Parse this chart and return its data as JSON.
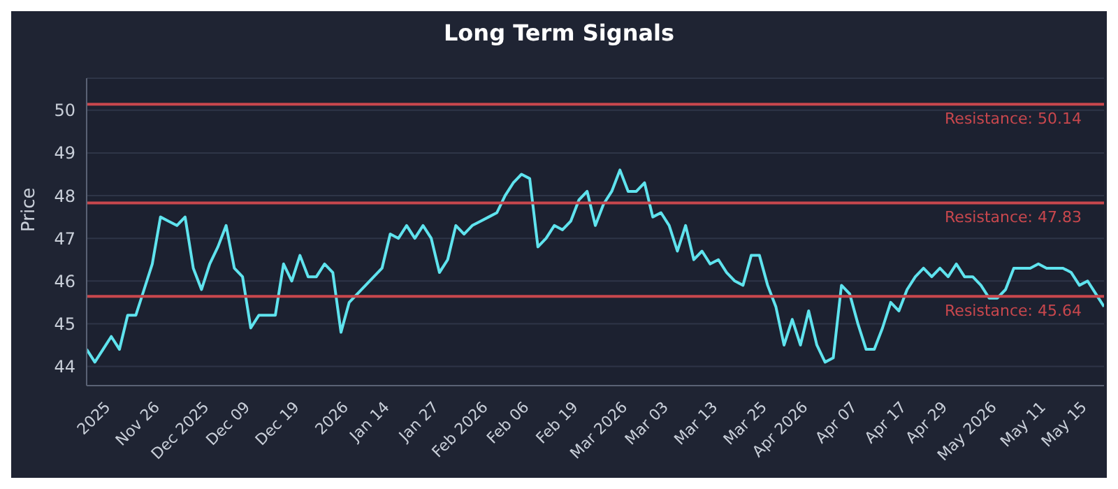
{
  "chart_data": {
    "type": "line",
    "title": "Long Term Signals",
    "ylabel": "Price",
    "categories": [
      null,
      null,
      null,
      "2025",
      null,
      null,
      null,
      null,
      null,
      "Nov 26",
      null,
      null,
      null,
      null,
      null,
      "Dec 2025",
      null,
      null,
      null,
      null,
      "Dec 09",
      null,
      null,
      null,
      null,
      null,
      "Dec 19",
      null,
      null,
      null,
      null,
      null,
      "2026",
      null,
      null,
      null,
      null,
      "Jan 14",
      null,
      null,
      null,
      null,
      null,
      "Jan 27",
      null,
      null,
      null,
      null,
      null,
      "Feb 2026",
      null,
      null,
      null,
      null,
      "Feb 06",
      null,
      null,
      null,
      null,
      null,
      "Feb 19",
      null,
      null,
      null,
      null,
      null,
      "Mar 2026",
      null,
      null,
      null,
      null,
      "Mar 03",
      null,
      null,
      null,
      null,
      null,
      "Mar 13",
      null,
      null,
      null,
      null,
      null,
      "Mar 25",
      null,
      null,
      null,
      null,
      "Apr 2026",
      null,
      null,
      null,
      null,
      null,
      "Apr 07",
      null,
      null,
      null,
      null,
      null,
      "Apr 17",
      null,
      null,
      null,
      null,
      "Apr 29",
      null,
      null,
      null,
      null,
      null,
      "May 2026",
      null,
      null,
      null,
      null,
      null,
      "May 11",
      null,
      null,
      null,
      null,
      "May 15",
      null,
      null
    ],
    "series": [
      {
        "color": "#5fe3ee",
        "values": [
          44.4,
          44.1,
          44.4,
          44.7,
          44.4,
          45.2,
          45.2,
          45.8,
          46.4,
          47.5,
          47.4,
          47.3,
          47.5,
          46.3,
          45.8,
          46.4,
          46.8,
          47.3,
          46.3,
          46.1,
          44.9,
          45.2,
          45.2,
          45.2,
          46.4,
          46.0,
          46.6,
          46.1,
          46.1,
          46.4,
          46.2,
          44.8,
          45.5,
          45.7,
          45.9,
          46.1,
          46.3,
          47.1,
          47.0,
          47.3,
          47.0,
          47.3,
          47.0,
          46.2,
          46.5,
          47.3,
          47.1,
          47.3,
          47.4,
          47.5,
          47.6,
          48.0,
          48.3,
          48.5,
          48.4,
          46.8,
          47.0,
          47.3,
          47.2,
          47.4,
          47.9,
          48.1,
          47.3,
          47.8,
          48.1,
          48.6,
          48.1,
          48.1,
          48.3,
          47.5,
          47.6,
          47.3,
          46.7,
          47.3,
          46.5,
          46.7,
          46.4,
          46.5,
          46.2,
          46.0,
          45.9,
          46.6,
          46.6,
          45.9,
          45.4,
          44.5,
          45.1,
          44.5,
          45.3,
          44.5,
          44.1,
          44.2,
          45.9,
          45.7,
          45.0,
          44.4,
          44.4,
          44.9,
          45.5,
          45.3,
          45.8,
          46.1,
          46.3,
          46.1,
          46.3,
          46.1,
          46.4,
          46.1,
          46.1,
          45.9,
          45.6,
          45.6,
          45.8,
          46.3,
          46.3,
          46.3,
          46.4,
          46.3,
          46.3,
          46.3,
          46.2,
          45.9,
          46.0,
          45.7,
          45.4
        ]
      }
    ],
    "ylim": [
      43.55,
      50.75
    ],
    "yticks": [
      44,
      45,
      46,
      47,
      48,
      49,
      50
    ],
    "grid": "y",
    "marker": "none",
    "line_style": "solid",
    "ref_lines": [
      {
        "axis": "y",
        "value": 50.14,
        "label": "Resistance: 50.14",
        "color": "#c8474d"
      },
      {
        "axis": "y",
        "value": 47.83,
        "label": "Resistance: 47.83",
        "color": "#c8474d"
      },
      {
        "axis": "y",
        "value": 45.64,
        "label": "Resistance: 45.64",
        "color": "#c8474d"
      }
    ]
  }
}
